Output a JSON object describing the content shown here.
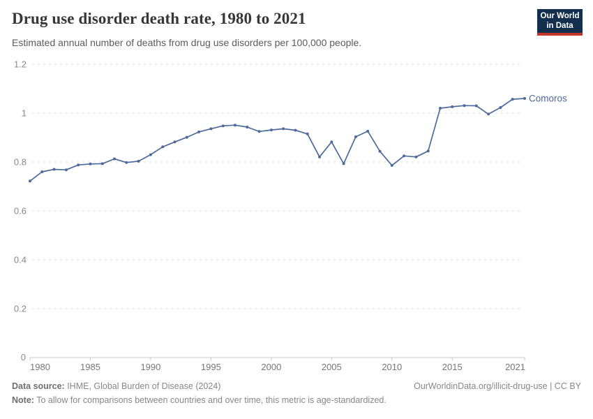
{
  "header": {
    "title": "Drug use disorder death rate, 1980 to 2021",
    "subtitle": "Estimated annual number of deaths from drug use disorders per 100,000 people.",
    "logo": {
      "line1": "Our World",
      "line2": "in Data"
    }
  },
  "chart_data": {
    "type": "line",
    "title": "Drug use disorder death rate, 1980 to 2021",
    "xlabel": "",
    "ylabel": "",
    "xlim": [
      1980,
      2021
    ],
    "ylim": [
      0,
      1.2
    ],
    "x_ticks": [
      1980,
      1985,
      1990,
      1995,
      2000,
      2005,
      2010,
      2015,
      2021
    ],
    "y_ticks": [
      0,
      0.2,
      0.4,
      0.6,
      0.8,
      1,
      1.2
    ],
    "grid": "horizontal-dashed",
    "legend_position": "end-of-line",
    "series": [
      {
        "name": "Comoros",
        "color": "#4C6A9C",
        "x": [
          1980,
          1981,
          1982,
          1983,
          1984,
          1985,
          1986,
          1987,
          1988,
          1989,
          1990,
          1991,
          1992,
          1993,
          1994,
          1995,
          1996,
          1997,
          1998,
          1999,
          2000,
          2001,
          2002,
          2003,
          2004,
          2005,
          2006,
          2007,
          2008,
          2009,
          2010,
          2011,
          2012,
          2013,
          2014,
          2015,
          2016,
          2017,
          2018,
          2019,
          2020,
          2021
        ],
        "values": [
          0.722,
          0.76,
          0.77,
          0.768,
          0.788,
          0.792,
          0.793,
          0.813,
          0.798,
          0.803,
          0.83,
          0.862,
          0.882,
          0.901,
          0.923,
          0.936,
          0.948,
          0.951,
          0.943,
          0.925,
          0.931,
          0.936,
          0.93,
          0.915,
          0.821,
          0.882,
          0.793,
          0.903,
          0.926,
          0.844,
          0.786,
          0.825,
          0.821,
          0.845,
          1.02,
          1.026,
          1.031,
          1.03,
          0.996,
          1.023,
          1.057,
          1.06
        ]
      }
    ]
  },
  "colors": {
    "accent_blue": "#4C6A9C",
    "logo_bg": "#12304d",
    "logo_stripe": "#c0362c",
    "grid_line": "#dddddd",
    "axis_line": "#c9c9c9",
    "y_tick_label": "#888888",
    "x_tick_label": "#767676"
  },
  "footer": {
    "source_label": "Data source:",
    "source_text": " IHME, Global Burden of Disease (2024)",
    "link_text": "OurWorldinData.org/illicit-drug-use | CC BY",
    "note_label": "Note:",
    "note_text": " To allow for comparisons between countries and over time, this metric is age-standardized."
  }
}
